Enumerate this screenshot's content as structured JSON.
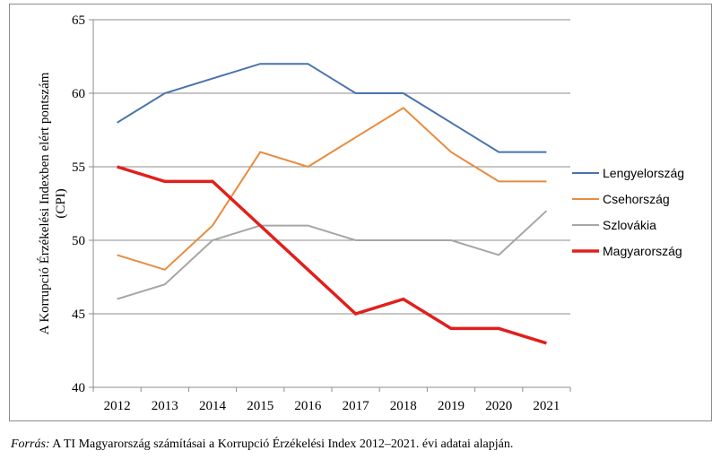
{
  "chart_data": {
    "type": "line",
    "title": "",
    "xlabel": "",
    "ylabel": "A Korrupció Érzékelési Indexben elért pontszám (CPI)",
    "ylabel_lines": [
      "A Korrupció Érzékelési Indexben elért pontszám",
      "(CPI)"
    ],
    "categories": [
      "2012",
      "2013",
      "2014",
      "2015",
      "2016",
      "2017",
      "2018",
      "2019",
      "2020",
      "2021"
    ],
    "ylim": [
      40,
      65
    ],
    "yticks": [
      40,
      45,
      50,
      55,
      60,
      65
    ],
    "grid": true,
    "legend_position": "right",
    "series": [
      {
        "name": "Lengyelország",
        "color": "#4a72ad",
        "width": 2,
        "values": [
          58,
          60,
          61,
          62,
          62,
          60,
          60,
          58,
          56,
          56
        ]
      },
      {
        "name": "Csehország",
        "color": "#e88c3f",
        "width": 2,
        "values": [
          49,
          48,
          51,
          56,
          55,
          57,
          59,
          56,
          54,
          54
        ]
      },
      {
        "name": "Szlovákia",
        "color": "#a6a6a6",
        "width": 2,
        "values": [
          46,
          47,
          50,
          51,
          51,
          50,
          50,
          50,
          49,
          52
        ]
      },
      {
        "name": "Magyarország",
        "color": "#e0201c",
        "width": 3.5,
        "values": [
          55,
          54,
          54,
          51,
          48,
          45,
          46,
          44,
          44,
          43
        ]
      }
    ]
  },
  "source": {
    "label": "Forrás:",
    "text": " A TI Magyarország számításai a Korrupció Érzékelési Index 2012–2021. évi adatai alapján."
  }
}
